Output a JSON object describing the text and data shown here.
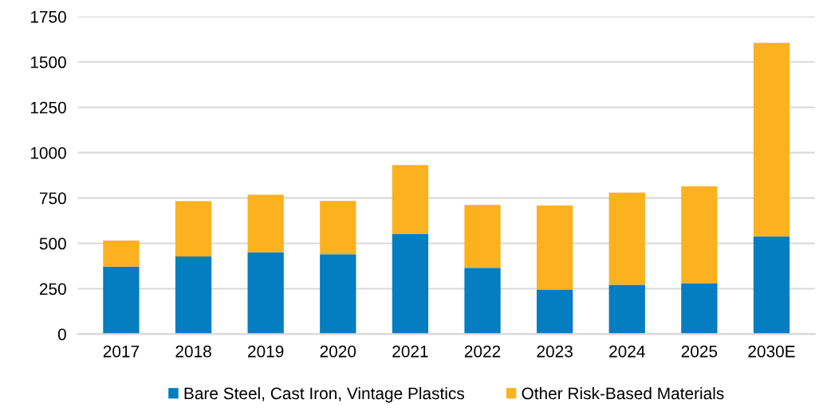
{
  "chart_data": {
    "type": "bar",
    "stacked": true,
    "categories": [
      "2017",
      "2018",
      "2019",
      "2020",
      "2021",
      "2022",
      "2023",
      "2024",
      "2025",
      "2030E"
    ],
    "series": [
      {
        "name": "Bare Steel, Cast Iron, Vintage Plastics",
        "color": "#047dc1",
        "values": [
          372,
          428,
          451,
          440,
          553,
          365,
          245,
          272,
          281,
          539
        ]
      },
      {
        "name": "Other Risk-Based Materials",
        "color": "#fcb11f",
        "values": [
          144,
          305,
          317,
          294,
          378,
          347,
          464,
          508,
          533,
          1066
        ]
      }
    ],
    "ylim": [
      0,
      1750
    ],
    "yticks": [
      0,
      250,
      500,
      750,
      1000,
      1250,
      1500,
      1750
    ],
    "grid": "y",
    "legend": "bottom"
  }
}
